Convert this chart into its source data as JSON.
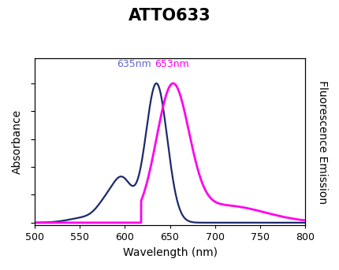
{
  "title": "ATTO633",
  "xlabel": "Wavelength (nm)",
  "ylabel_left": "Absorbance",
  "ylabel_right": "Fluorescence Emission",
  "xmin": 500,
  "xmax": 800,
  "abs_peak_label": "635nm",
  "em_peak_label": "653nm",
  "abs_color": "#1b2a6b",
  "em_color": "#ff00ee",
  "abs_label_color": "#6666cc",
  "em_label_color": "#ff00ee",
  "background_color": "#ffffff",
  "fig_bg_color": "#ffffff",
  "title_fontsize": 15,
  "axis_label_fontsize": 10
}
